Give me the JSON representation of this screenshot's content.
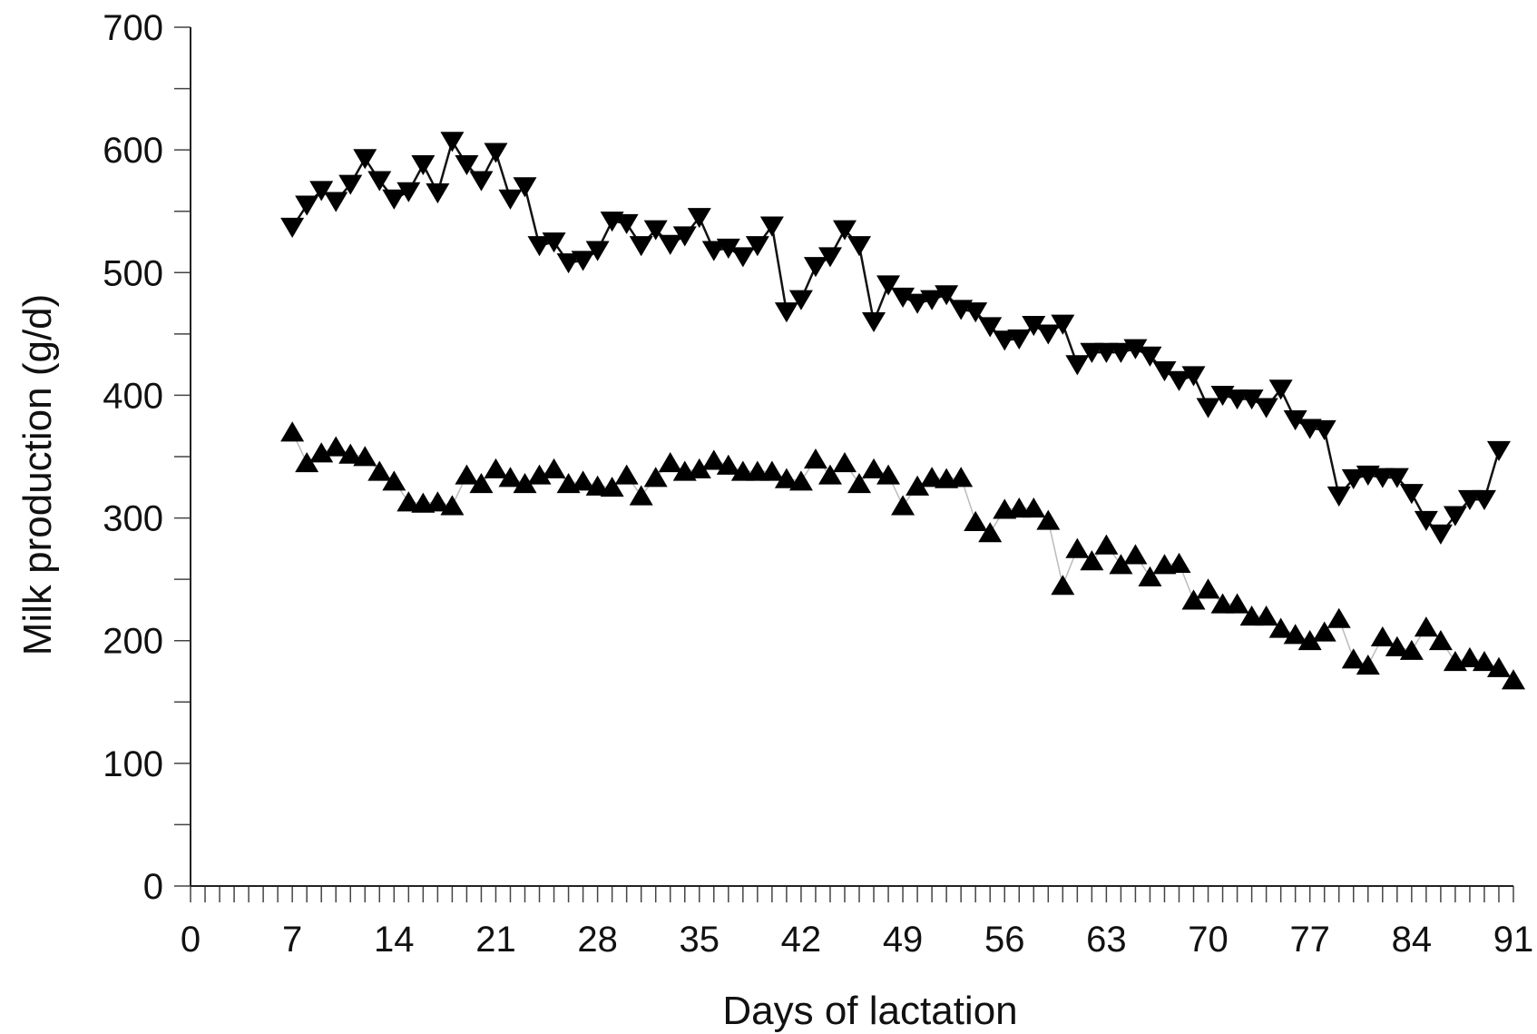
{
  "chart_data": {
    "type": "line",
    "xlabel": "Days of lactation",
    "ylabel": "Milk production (g/d)",
    "xlim": [
      0,
      91
    ],
    "ylim": [
      0,
      700
    ],
    "xticks": [
      0,
      7,
      14,
      21,
      28,
      35,
      42,
      49,
      56,
      63,
      70,
      77,
      84,
      91
    ],
    "yticks": [
      0,
      100,
      200,
      300,
      400,
      500,
      600,
      700
    ],
    "grid": false,
    "legend": "none",
    "series": [
      {
        "marker": "triangle-down",
        "color": "#000000",
        "x": [
          7,
          8,
          9,
          10,
          11,
          12,
          13,
          14,
          15,
          16,
          17,
          18,
          19,
          20,
          21,
          22,
          23,
          24,
          25,
          26,
          27,
          28,
          29,
          30,
          31,
          32,
          33,
          34,
          35,
          36,
          37,
          38,
          39,
          40,
          41,
          42,
          43,
          44,
          45,
          46,
          47,
          48,
          49,
          50,
          51,
          52,
          53,
          54,
          55,
          56,
          57,
          58,
          59,
          60,
          61,
          62,
          63,
          64,
          65,
          66,
          67,
          68,
          69,
          70,
          71,
          72,
          73,
          74,
          75,
          76,
          77,
          78,
          79,
          80,
          81,
          82,
          83,
          84,
          85,
          86,
          87,
          88,
          89,
          90,
          91
        ],
        "y": [
          537,
          555,
          567,
          558,
          572,
          593,
          575,
          560,
          566,
          588,
          565,
          607,
          588,
          575,
          598,
          560,
          570,
          522,
          525,
          508,
          510,
          518,
          542,
          540,
          522,
          535,
          523,
          530,
          545,
          518,
          520,
          513,
          522,
          538,
          468,
          478,
          505,
          513,
          535,
          522,
          460,
          490,
          480,
          475,
          478,
          482,
          470,
          468,
          456,
          445,
          446,
          457,
          450,
          458,
          425,
          435,
          435,
          435,
          438,
          432,
          420,
          412,
          416,
          390,
          400,
          397,
          397,
          390,
          405,
          380,
          373,
          372,
          318,
          332,
          335,
          333,
          333,
          320,
          298,
          287,
          302,
          315,
          315,
          355,
          null
        ]
      },
      {
        "marker": "triangle-up",
        "color": "#000000",
        "x": [
          7,
          8,
          9,
          10,
          11,
          12,
          13,
          14,
          15,
          16,
          17,
          18,
          19,
          20,
          21,
          22,
          23,
          24,
          25,
          26,
          27,
          28,
          29,
          30,
          31,
          32,
          33,
          34,
          35,
          36,
          37,
          38,
          39,
          40,
          41,
          42,
          43,
          44,
          45,
          46,
          47,
          48,
          49,
          50,
          51,
          52,
          53,
          54,
          55,
          56,
          57,
          58,
          59,
          60,
          61,
          62,
          63,
          64,
          65,
          66,
          67,
          68,
          69,
          70,
          71,
          72,
          73,
          74,
          75,
          76,
          77,
          78,
          79,
          80,
          81,
          82,
          83,
          84,
          85,
          86,
          87,
          88,
          89,
          90,
          91
        ],
        "y": [
          370,
          345,
          353,
          358,
          352,
          350,
          338,
          330,
          313,
          312,
          313,
          310,
          335,
          328,
          340,
          333,
          328,
          335,
          340,
          328,
          330,
          326,
          325,
          335,
          318,
          333,
          345,
          338,
          340,
          347,
          343,
          338,
          338,
          338,
          332,
          330,
          348,
          335,
          345,
          328,
          340,
          335,
          310,
          326,
          333,
          332,
          333,
          297,
          288,
          307,
          308,
          308,
          298,
          245,
          275,
          265,
          278,
          262,
          270,
          252,
          262,
          263,
          233,
          242,
          230,
          230,
          220,
          220,
          210,
          205,
          200,
          207,
          218,
          185,
          180,
          203,
          195,
          192,
          211,
          200,
          183,
          186,
          183,
          178,
          168
        ]
      }
    ]
  }
}
